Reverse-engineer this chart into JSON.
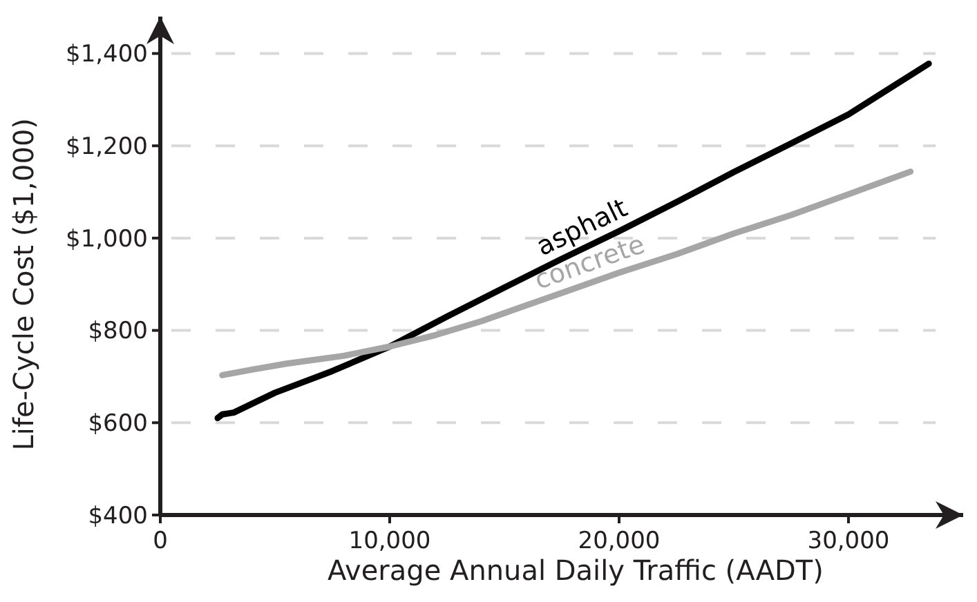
{
  "chart_data": {
    "type": "line",
    "xlabel": "Average Annual Daily Traffic (AADT)",
    "ylabel": "Life-Cycle Cost ($1,000)",
    "xlim": [
      0,
      35000
    ],
    "ylim": [
      400,
      1480
    ],
    "xticks": [
      {
        "value": 0,
        "label": "0"
      },
      {
        "value": 10000,
        "label": "10,000"
      },
      {
        "value": 20000,
        "label": "20,000"
      },
      {
        "value": 30000,
        "label": "30,000"
      }
    ],
    "yticks": [
      {
        "value": 400,
        "label": "$400"
      },
      {
        "value": 600,
        "label": "$600"
      },
      {
        "value": 800,
        "label": "$800"
      },
      {
        "value": 1000,
        "label": "$1,000"
      },
      {
        "value": 1200,
        "label": "$1,200"
      },
      {
        "value": 1400,
        "label": "$1,400"
      }
    ],
    "grid": "y",
    "line_style": "solid",
    "marker": "none",
    "series": [
      {
        "name": "asphalt",
        "color": "#000000",
        "x": [
          2500,
          2700,
          3200,
          5000,
          7500,
          10000,
          12500,
          15000,
          17500,
          20000,
          22500,
          25000,
          27500,
          30000,
          33500
        ],
        "values": [
          610,
          618,
          622,
          665,
          712,
          765,
          830,
          893,
          955,
          1015,
          1078,
          1143,
          1205,
          1268,
          1378
        ]
      },
      {
        "name": "concrete",
        "color": "#a6a6a6",
        "x": [
          2700,
          4000,
          5500,
          8000,
          10000,
          12000,
          14000,
          16000,
          18000,
          20000,
          22500,
          25000,
          27500,
          30000,
          32700
        ],
        "values": [
          703,
          715,
          728,
          745,
          765,
          790,
          820,
          855,
          890,
          925,
          965,
          1010,
          1050,
          1095,
          1144
        ]
      }
    ]
  }
}
